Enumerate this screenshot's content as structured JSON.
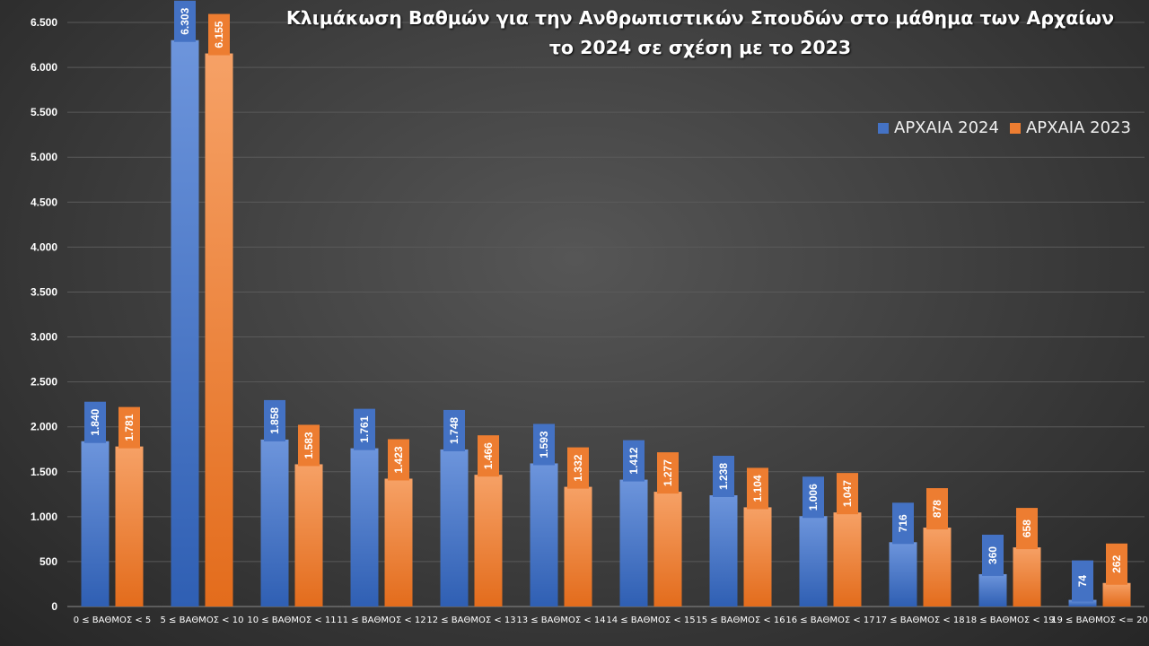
{
  "chart_data": {
    "type": "bar",
    "title": "Κλιμάκωση Βαθμών για την Ανθρωπιστικών Σπουδών στο μάθημα των Αρχαίων το 2024 σε σχέση με το 2023",
    "title_lines": [
      "Κλιμάκωση Βαθμών για την Ανθρωπιστικών Σπουδών στο μάθημα των Αρχαίων",
      "το 2024 σε σχέση με το 2023"
    ],
    "categories": [
      "0 ≤ ΒΑΘΜΟΣ < 5",
      "5 ≤ ΒΑΘΜΟΣ < 10",
      "10 ≤ ΒΑΘΜΟΣ < 11",
      "11 ≤ ΒΑΘΜΟΣ < 12",
      "12 ≤ ΒΑΘΜΟΣ < 13",
      "13 ≤ ΒΑΘΜΟΣ < 14",
      "14 ≤ ΒΑΘΜΟΣ < 15",
      "15 ≤ ΒΑΘΜΟΣ < 16",
      "16 ≤ ΒΑΘΜΟΣ < 17",
      "17 ≤ ΒΑΘΜΟΣ < 18",
      "18 ≤ ΒΑΘΜΟΣ < 19",
      "19 ≤ ΒΑΘΜΟΣ <= 20"
    ],
    "series": [
      {
        "name": "ΑΡΧΑΙΑ 2024",
        "color": "#4472c4",
        "values": [
          1840,
          6303,
          1858,
          1761,
          1748,
          1593,
          1412,
          1238,
          1006,
          716,
          360,
          74
        ],
        "labels": [
          "1.840",
          "6.303",
          "1.858",
          "1.761",
          "1.748",
          "1.593",
          "1.412",
          "1.238",
          "1.006",
          "716",
          "360",
          "74"
        ]
      },
      {
        "name": "ΑΡΧΑΙΑ 2023",
        "color": "#ed7d31",
        "values": [
          1781,
          6155,
          1583,
          1423,
          1466,
          1332,
          1277,
          1104,
          1047,
          878,
          658,
          262
        ],
        "labels": [
          "1.781",
          "6.155",
          "1.583",
          "1.423",
          "1.466",
          "1.332",
          "1.277",
          "1.104",
          "1.047",
          "878",
          "658",
          "262"
        ]
      }
    ],
    "ylim": [
      0,
      6500
    ],
    "y_ticks": [
      0,
      500,
      1000,
      1500,
      2000,
      2500,
      3000,
      3500,
      4000,
      4500,
      5000,
      5500,
      6000,
      6500
    ],
    "y_tick_labels": [
      "0",
      "500",
      "1.000",
      "1.500",
      "2.000",
      "2.500",
      "3.000",
      "3.500",
      "4.000",
      "4.500",
      "5.000",
      "5.500",
      "6.000",
      "6.500"
    ],
    "grid": true,
    "legend_position": "top-right",
    "xlabel": "",
    "ylabel": ""
  }
}
